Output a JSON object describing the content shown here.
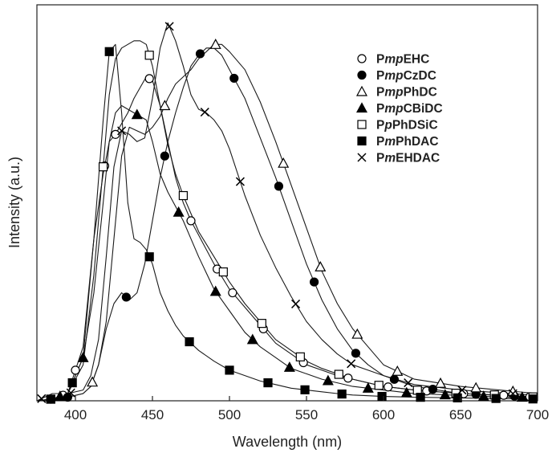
{
  "chart_data": {
    "type": "line",
    "title": "",
    "xlabel": "Wavelength (nm)",
    "ylabel": "Intensity (a.u.)",
    "xlim": [
      375,
      700
    ],
    "ylim": [
      0,
      1.1
    ],
    "xticks": [
      400,
      450,
      500,
      550,
      600,
      650,
      700
    ],
    "yticks_visible": false,
    "grid": false,
    "legend_position": "top-right",
    "series": [
      {
        "name_parts": [
          {
            "t": "P",
            "i": false
          },
          {
            "t": "mp",
            "i": true
          },
          {
            "t": "EHC",
            "i": false
          }
        ],
        "name": "PmpEHC",
        "marker": "circle-open",
        "x": [
          375,
          385,
          395,
          405,
          412,
          418,
          422,
          426,
          430,
          434,
          438,
          442,
          446,
          450,
          455,
          460,
          465,
          470,
          475,
          480,
          490,
          500,
          510,
          520,
          530,
          540,
          550,
          560,
          570,
          580,
          600,
          620,
          650,
          680,
          700
        ],
        "y": [
          0.0,
          0.005,
          0.02,
          0.15,
          0.45,
          0.63,
          0.72,
          0.74,
          0.77,
          0.8,
          0.84,
          0.87,
          0.9,
          0.89,
          0.82,
          0.72,
          0.62,
          0.55,
          0.5,
          0.46,
          0.38,
          0.31,
          0.26,
          0.21,
          0.16,
          0.13,
          0.1,
          0.085,
          0.07,
          0.06,
          0.04,
          0.03,
          0.02,
          0.015,
          0.01
        ],
        "marker_x": [
          384,
          392,
          400,
          419,
          426,
          448,
          475,
          492,
          502,
          522,
          548,
          577,
          603,
          628,
          652,
          678,
          695
        ]
      },
      {
        "name_parts": [
          {
            "t": "P",
            "i": false
          },
          {
            "t": "mp",
            "i": true
          },
          {
            "t": "CzDC",
            "i": false
          }
        ],
        "name": "PmpCzDC",
        "marker": "circle-filled",
        "x": [
          375,
          385,
          395,
          405,
          410,
          415,
          420,
          425,
          430,
          435,
          440,
          445,
          450,
          455,
          460,
          465,
          470,
          475,
          480,
          485,
          490,
          495,
          500,
          510,
          520,
          530,
          540,
          550,
          560,
          570,
          580,
          590,
          600,
          620,
          650,
          700
        ],
        "y": [
          0.0,
          0.005,
          0.01,
          0.02,
          0.04,
          0.1,
          0.2,
          0.27,
          0.3,
          0.28,
          0.3,
          0.38,
          0.5,
          0.62,
          0.72,
          0.8,
          0.87,
          0.93,
          0.96,
          0.98,
          0.98,
          0.96,
          0.92,
          0.84,
          0.73,
          0.62,
          0.5,
          0.38,
          0.28,
          0.2,
          0.14,
          0.1,
          0.07,
          0.04,
          0.02,
          0.01
        ],
        "marker_x": [
          395,
          433,
          458,
          481,
          503,
          532,
          555,
          582,
          607,
          632,
          660,
          685
        ]
      },
      {
        "name_parts": [
          {
            "t": "P",
            "i": false
          },
          {
            "t": "mp",
            "i": true
          },
          {
            "t": "PhDC",
            "i": false
          }
        ],
        "name": "PmpPhDC",
        "marker": "triangle-open",
        "x": [
          375,
          385,
          395,
          405,
          410,
          415,
          420,
          425,
          430,
          435,
          440,
          445,
          450,
          455,
          460,
          465,
          470,
          475,
          480,
          485,
          490,
          495,
          500,
          510,
          520,
          530,
          540,
          550,
          560,
          570,
          580,
          590,
          600,
          620,
          650,
          700
        ],
        "y": [
          0.0,
          0.005,
          0.01,
          0.02,
          0.04,
          0.1,
          0.22,
          0.45,
          0.68,
          0.76,
          0.75,
          0.74,
          0.76,
          0.79,
          0.84,
          0.88,
          0.9,
          0.92,
          0.95,
          0.97,
          0.99,
          0.99,
          0.97,
          0.92,
          0.83,
          0.72,
          0.6,
          0.48,
          0.36,
          0.27,
          0.2,
          0.15,
          0.1,
          0.06,
          0.04,
          0.02
        ],
        "marker_x": [
          411,
          458,
          491,
          535,
          559,
          583,
          609,
          637,
          660,
          684
        ]
      },
      {
        "name_parts": [
          {
            "t": "P",
            "i": false
          },
          {
            "t": "mp",
            "i": true
          },
          {
            "t": "CBiDC",
            "i": false
          }
        ],
        "name": "PmpCBiDC",
        "marker": "triangle-filled",
        "x": [
          375,
          385,
          395,
          405,
          412,
          418,
          422,
          426,
          430,
          434,
          438,
          442,
          446,
          450,
          455,
          460,
          465,
          470,
          475,
          480,
          490,
          500,
          510,
          520,
          530,
          540,
          550,
          560,
          570,
          580,
          600,
          620,
          650,
          680,
          700
        ],
        "y": [
          0.0,
          0.005,
          0.02,
          0.12,
          0.3,
          0.55,
          0.72,
          0.8,
          0.82,
          0.81,
          0.8,
          0.79,
          0.78,
          0.72,
          0.63,
          0.58,
          0.54,
          0.5,
          0.45,
          0.4,
          0.31,
          0.25,
          0.19,
          0.15,
          0.12,
          0.09,
          0.075,
          0.06,
          0.05,
          0.04,
          0.03,
          0.02,
          0.015,
          0.01,
          0.01
        ],
        "marker_x": [
          390,
          405,
          440,
          467,
          491,
          515,
          539,
          564,
          590,
          615,
          640,
          665,
          690
        ]
      },
      {
        "name_parts": [
          {
            "t": "P",
            "i": false
          },
          {
            "t": "p",
            "i": true
          },
          {
            "t": "PhDSiC",
            "i": false
          }
        ],
        "name": "PpPhDSiC",
        "marker": "square-open",
        "x": [
          375,
          385,
          395,
          405,
          412,
          418,
          422,
          426,
          430,
          434,
          438,
          442,
          446,
          450,
          455,
          460,
          465,
          470,
          475,
          480,
          490,
          500,
          510,
          520,
          530,
          540,
          550,
          560,
          570,
          580,
          600,
          620,
          650,
          680,
          700
        ],
        "y": [
          0.0,
          0.005,
          0.02,
          0.1,
          0.35,
          0.65,
          0.85,
          0.95,
          0.98,
          0.99,
          1.0,
          1.0,
          0.99,
          0.93,
          0.82,
          0.71,
          0.63,
          0.57,
          0.52,
          0.47,
          0.4,
          0.33,
          0.27,
          0.22,
          0.17,
          0.14,
          0.11,
          0.09,
          0.075,
          0.06,
          0.04,
          0.03,
          0.02,
          0.015,
          0.01
        ],
        "marker_x": [
          384,
          418,
          448,
          470,
          496,
          521,
          546,
          571,
          597,
          622,
          647,
          672,
          697
        ]
      },
      {
        "name_parts": [
          {
            "t": "P",
            "i": false
          },
          {
            "t": "m",
            "i": true
          },
          {
            "t": "PhDAC",
            "i": false
          }
        ],
        "name": "PmPhDAC",
        "marker": "square-filled",
        "x": [
          375,
          385,
          395,
          405,
          412,
          418,
          422,
          426,
          430,
          434,
          438,
          442,
          446,
          450,
          455,
          460,
          465,
          470,
          475,
          480,
          490,
          500,
          510,
          520,
          530,
          540,
          550,
          560,
          570,
          580,
          600,
          620,
          650,
          680,
          700
        ],
        "y": [
          0.0,
          0.005,
          0.02,
          0.12,
          0.45,
          0.78,
          0.97,
          0.99,
          0.8,
          0.55,
          0.45,
          0.44,
          0.42,
          0.38,
          0.3,
          0.25,
          0.21,
          0.18,
          0.16,
          0.14,
          0.11,
          0.085,
          0.07,
          0.055,
          0.045,
          0.035,
          0.03,
          0.025,
          0.02,
          0.016,
          0.012,
          0.01,
          0.008,
          0.006,
          0.005
        ],
        "marker_x": [
          384,
          398,
          422,
          448,
          474,
          500,
          525,
          549,
          573,
          599,
          624,
          648,
          673,
          697
        ]
      },
      {
        "name_parts": [
          {
            "t": "P",
            "i": false
          },
          {
            "t": "m",
            "i": true
          },
          {
            "t": "EHDAC",
            "i": false
          }
        ],
        "name": "PmEHDAC",
        "marker": "cross",
        "x": [
          375,
          380,
          385,
          395,
          405,
          410,
          415,
          420,
          425,
          430,
          435,
          440,
          445,
          450,
          455,
          460,
          465,
          470,
          475,
          480,
          485,
          490,
          495,
          500,
          510,
          520,
          530,
          540,
          550,
          560,
          570,
          580,
          590,
          600,
          620,
          650,
          700
        ],
        "y": [
          0.0,
          0.01,
          0.02,
          0.02,
          0.03,
          0.07,
          0.17,
          0.4,
          0.65,
          0.75,
          0.74,
          0.72,
          0.73,
          0.84,
          0.98,
          1.05,
          1.0,
          0.93,
          0.85,
          0.81,
          0.8,
          0.78,
          0.75,
          0.7,
          0.57,
          0.46,
          0.37,
          0.29,
          0.22,
          0.17,
          0.13,
          0.1,
          0.085,
          0.07,
          0.045,
          0.03,
          0.015
        ],
        "marker_x": [
          378,
          397,
          430,
          461,
          484,
          507,
          543,
          579,
          616,
          651,
          684
        ]
      }
    ]
  }
}
